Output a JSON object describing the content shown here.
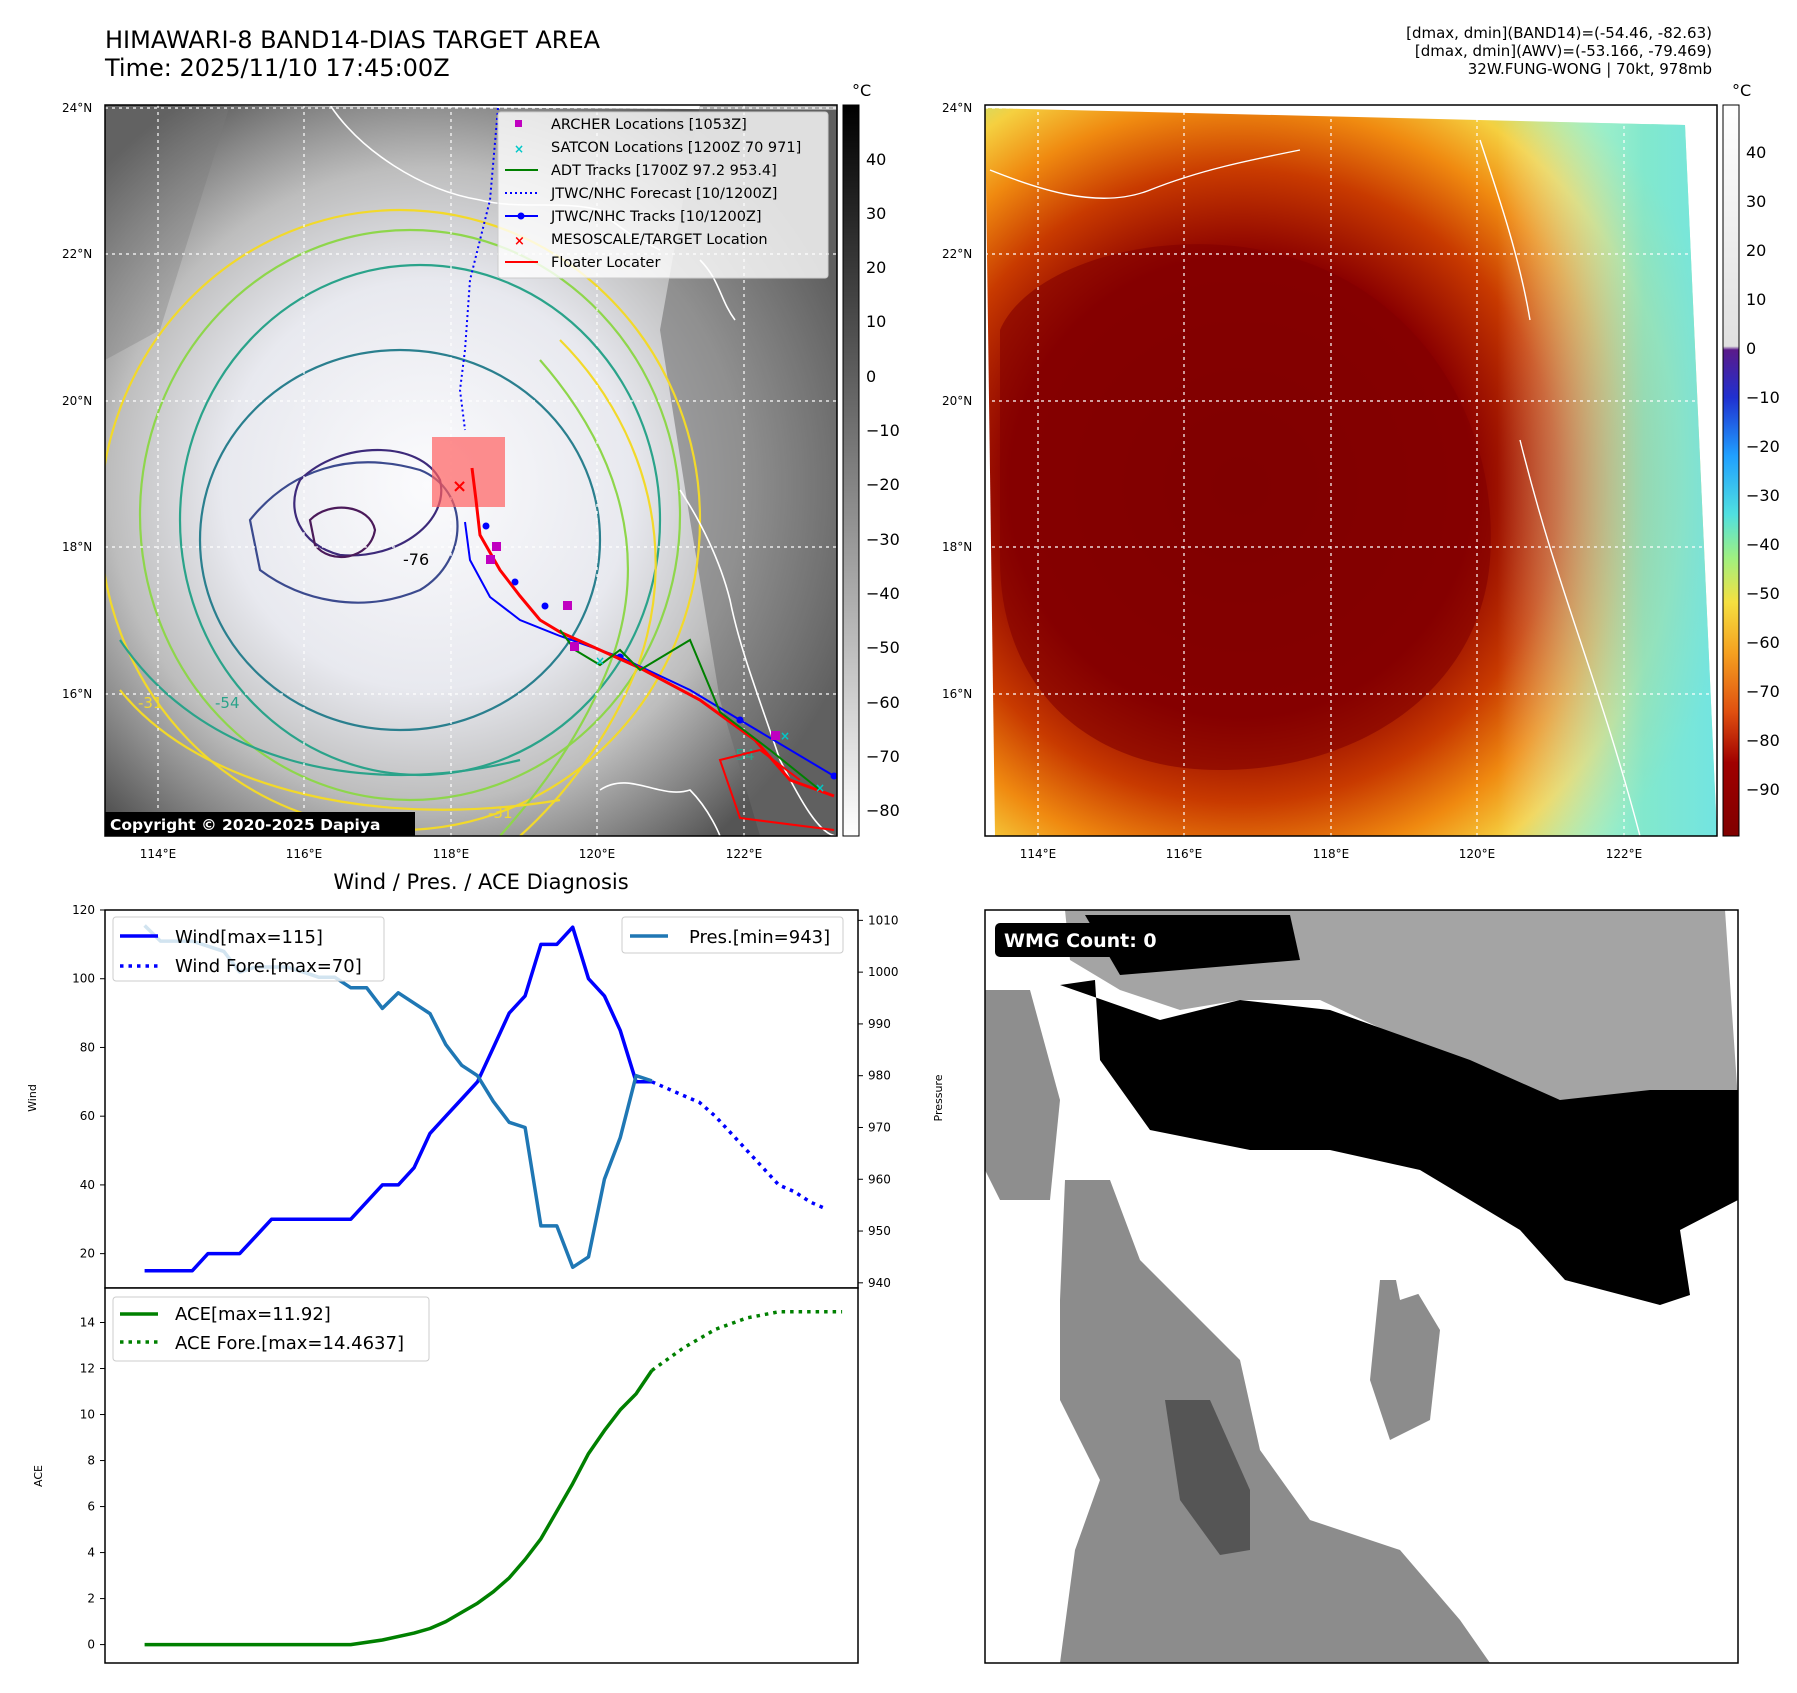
{
  "header": {
    "title_line1": "HIMAWARI-8 BAND14-DIAS TARGET AREA",
    "title_line2": "Time: 2025/11/10 17:45:00Z",
    "stats_line1": "[dmax, dmin](BAND14)=(-54.46, -82.63)",
    "stats_line2": "[dmax, dmin](AWV)=(-53.166, -79.469)",
    "stats_line3": "32W.FUNG-WONG | 70kt, 978mb"
  },
  "map_panel_ir": {
    "lon_ticks": [
      "114°E",
      "116°E",
      "118°E",
      "120°E",
      "122°E"
    ],
    "lat_ticks": [
      "24°N",
      "22°N",
      "20°N",
      "18°N",
      "16°N"
    ],
    "colorbar_unit": "°C",
    "colorbar_ticks": [
      "40",
      "30",
      "20",
      "10",
      "0",
      "−10",
      "−20",
      "−30",
      "−40",
      "−50",
      "−60",
      "−70",
      "−80"
    ],
    "copyright": "Copyright © 2020-2025 Dapiya",
    "legend": [
      "ARCHER Locations [1053Z]",
      "SATCON Locations [1200Z 70 971]",
      "ADT Tracks [1700Z 97.2 953.4]",
      "JTWC/NHC Forecast [10/1200Z]",
      "JTWC/NHC Tracks [10/1200Z]",
      "MESOSCALE/TARGET Location",
      "Floater Locater"
    ],
    "contour_labels": [
      "-76",
      "-54",
      "-31",
      "-31",
      "-54"
    ],
    "colors": {
      "archer": "#c000c0",
      "satcon": "#00c8c8",
      "adt": "#008000",
      "forecast": "#0000ff",
      "track": "#0000ff",
      "target": "#ff0000",
      "floater": "#ff0000"
    }
  },
  "map_panel_awv": {
    "lon_ticks": [
      "114°E",
      "116°E",
      "118°E",
      "120°E",
      "122°E"
    ],
    "lat_ticks": [
      "24°N",
      "22°N",
      "20°N",
      "18°N",
      "16°N"
    ],
    "colorbar_unit": "°C",
    "colorbar_ticks": [
      "40",
      "30",
      "20",
      "10",
      "0",
      "−10",
      "−20",
      "−30",
      "−40",
      "−50",
      "−60",
      "−70",
      "−80",
      "−90"
    ]
  },
  "wmg_panel": {
    "label": "WMG Count: 0"
  },
  "chart_data": [
    {
      "type": "line",
      "title": "Wind / Pres. / ACE Diagnosis",
      "ylabel": "Wind",
      "ylabel_right": "Pressure",
      "ylim": [
        10,
        120
      ],
      "ylim_right": [
        939,
        1012
      ],
      "y_ticks": [
        "120",
        "100",
        "80",
        "60",
        "40",
        "20"
      ],
      "y_ticks_right": [
        "1010",
        "1000",
        "990",
        "980",
        "970",
        "960",
        "950",
        "940"
      ],
      "x": [
        0,
        1,
        2,
        3,
        4,
        5,
        6,
        7,
        8,
        9,
        10,
        11,
        12,
        13,
        14,
        15,
        16,
        17,
        18,
        19,
        20,
        21,
        22,
        23,
        24,
        25,
        26,
        27,
        28,
        29,
        30,
        31,
        32,
        33
      ],
      "series": [
        {
          "name": "Wind[max=115]",
          "style": "solid",
          "color": "#0000ff",
          "x": [
            0,
            1,
            2,
            3,
            4,
            5,
            6,
            7,
            8,
            9,
            10,
            11,
            12,
            13,
            14,
            15,
            16,
            17,
            18,
            19,
            20,
            21,
            22,
            23,
            24,
            25,
            26,
            27,
            28,
            29,
            30,
            31,
            32
          ],
          "values": [
            15,
            15,
            15,
            15,
            20,
            20,
            20,
            25,
            30,
            30,
            30,
            30,
            30,
            30,
            35,
            40,
            40,
            45,
            55,
            60,
            65,
            70,
            80,
            90,
            95,
            110,
            110,
            115,
            100,
            95,
            85,
            70,
            70
          ]
        },
        {
          "name": "Wind Fore.[max=70]",
          "style": "dotted",
          "color": "#0000ff",
          "x": [
            32,
            33,
            34,
            35,
            36,
            37,
            38,
            39,
            40,
            41,
            42,
            43
          ],
          "values": [
            70,
            68,
            66,
            64,
            60,
            55,
            50,
            45,
            40,
            38,
            35,
            33
          ]
        },
        {
          "name": "Pres.[min=943]",
          "style": "solid",
          "color": "#1f77b4",
          "axis": "right",
          "x": [
            0,
            1,
            2,
            3,
            4,
            5,
            6,
            7,
            8,
            9,
            10,
            11,
            12,
            13,
            14,
            15,
            16,
            17,
            18,
            19,
            20,
            21,
            22,
            23,
            24,
            25,
            26,
            27,
            28,
            29,
            30,
            31,
            32
          ],
          "values": [
            1009,
            1006,
            1006,
            1006,
            1005,
            1004,
            1000,
            1001,
            1001,
            1001,
            1000,
            999,
            999,
            997,
            997,
            993,
            996,
            994,
            992,
            986,
            982,
            980,
            975,
            971,
            970,
            951,
            951,
            943,
            945,
            960,
            968,
            980,
            979
          ]
        }
      ]
    },
    {
      "type": "line",
      "ylabel": "ACE",
      "ylim": [
        -0.8,
        15.5
      ],
      "y_ticks": [
        "14",
        "12",
        "10",
        "8",
        "6",
        "4",
        "2",
        "0"
      ],
      "series": [
        {
          "name": "ACE[max=11.92]",
          "style": "solid",
          "color": "#008000",
          "x": [
            0,
            5,
            10,
            13,
            15,
            17,
            18,
            19,
            20,
            21,
            22,
            23,
            24,
            25,
            26,
            27,
            28,
            29,
            30,
            31,
            32
          ],
          "values": [
            0,
            0,
            0,
            0,
            0.2,
            0.5,
            0.7,
            1.0,
            1.4,
            1.8,
            2.3,
            2.9,
            3.7,
            4.6,
            5.8,
            7.0,
            8.3,
            9.3,
            10.2,
            10.9,
            11.92
          ]
        },
        {
          "name": "ACE Fore.[max=14.4637]",
          "style": "dotted",
          "color": "#008000",
          "x": [
            32,
            34,
            36,
            38,
            40,
            42,
            44
          ],
          "values": [
            11.92,
            12.9,
            13.7,
            14.2,
            14.4637,
            14.4637,
            14.4637
          ]
        }
      ]
    }
  ]
}
